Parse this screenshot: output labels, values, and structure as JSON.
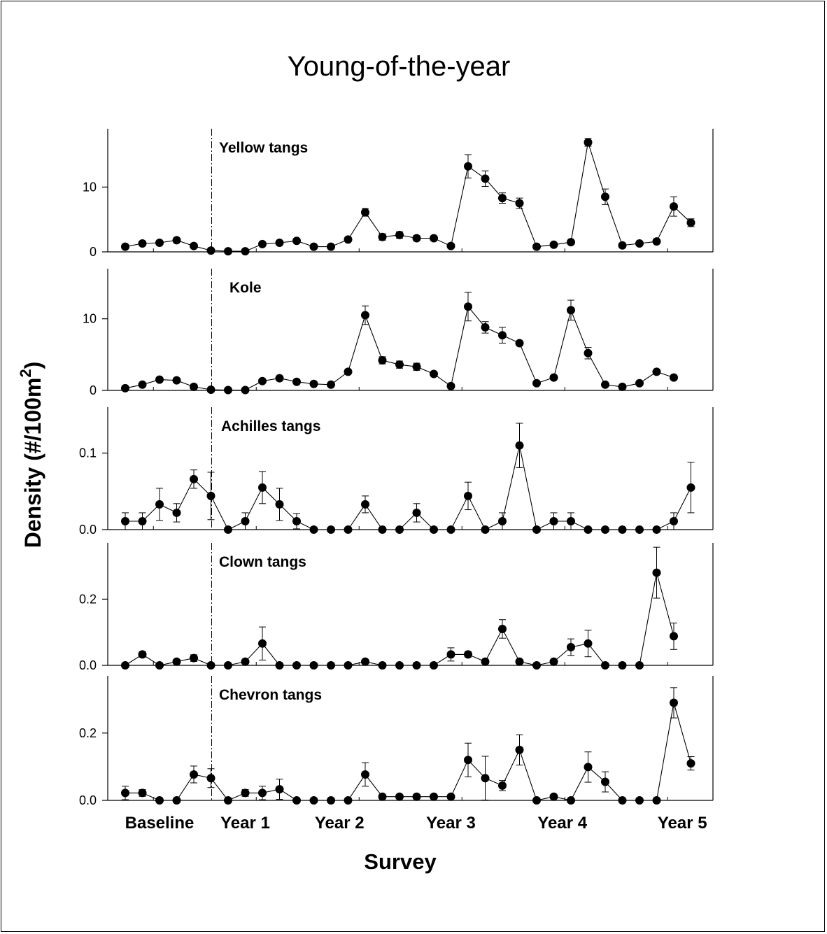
{
  "chart_data": {
    "type": "line",
    "title": "Young-of-the-year",
    "xlabel": "Survey",
    "ylabel": "Density (#/100m²)",
    "ylabel_main": "Density (#/100m",
    "ylabel_sup": "2",
    "ylabel_close": ")",
    "x_range": [
      1,
      35
    ],
    "intervention_x": 6,
    "grid": false,
    "x_tick_labels": [
      {
        "label": "Baseline",
        "x": 3
      },
      {
        "label": "Year 1",
        "x": 8
      },
      {
        "label": "Year 2",
        "x": 13.5
      },
      {
        "label": "Year 3",
        "x": 20
      },
      {
        "label": "Year 4",
        "x": 26.5
      },
      {
        "label": "Year 5",
        "x": 33.5
      }
    ],
    "panels": [
      {
        "name": "Yellow  tangs",
        "ylim": [
          0,
          19
        ],
        "yticks": [
          {
            "v": 0,
            "label": "0"
          },
          {
            "v": 10,
            "label": "10"
          }
        ],
        "values": [
          0.8,
          1.3,
          1.4,
          1.8,
          0.9,
          0.2,
          0.1,
          0.1,
          1.2,
          1.4,
          1.7,
          0.8,
          0.8,
          1.9,
          6.1,
          2.3,
          2.6,
          2.1,
          2.1,
          0.9,
          13.2,
          11.3,
          8.3,
          7.5,
          0.8,
          1.1,
          1.5,
          16.9,
          8.5,
          1.0,
          1.3,
          1.6,
          7.0,
          4.5
        ],
        "errors": [
          0,
          0,
          0,
          0,
          0,
          0,
          0,
          0,
          0,
          0,
          0,
          0,
          0,
          0,
          0.6,
          0.5,
          0.5,
          0.4,
          0,
          0,
          1.8,
          1.2,
          0.8,
          0.8,
          0,
          0,
          0,
          0.6,
          1.2,
          0,
          0,
          0,
          1.5,
          0.6
        ]
      },
      {
        "name": "Kole",
        "ylim": [
          0,
          17
        ],
        "yticks": [
          {
            "v": 0,
            "label": "0"
          },
          {
            "v": 10,
            "label": "10"
          }
        ],
        "values": [
          0.3,
          0.8,
          1.5,
          1.4,
          0.5,
          0.1,
          0.05,
          0.05,
          1.3,
          1.7,
          1.2,
          0.9,
          0.8,
          2.6,
          10.5,
          4.2,
          3.6,
          3.3,
          2.3,
          0.6,
          11.7,
          8.8,
          7.7,
          6.6,
          1.0,
          1.8,
          11.2,
          5.2,
          0.8,
          0.5,
          1.0,
          2.6,
          1.8
        ],
        "errors": [
          0,
          0,
          0,
          0,
          0,
          0,
          0,
          0,
          0,
          0,
          0,
          0,
          0,
          0,
          1.3,
          0.5,
          0.5,
          0.5,
          0,
          0,
          2.0,
          0.8,
          1.1,
          0,
          0,
          0,
          1.4,
          0.8,
          0,
          0,
          0,
          0,
          0
        ]
      },
      {
        "name": "Achilles tangs",
        "ylim": [
          0,
          0.16
        ],
        "yticks": [
          {
            "v": 0,
            "label": "0.0"
          },
          {
            "v": 0.1,
            "label": "0.1"
          }
        ],
        "values": [
          0.011,
          0.011,
          0.033,
          0.022,
          0.066,
          0.044,
          0,
          0.011,
          0.055,
          0.033,
          0.011,
          0,
          0,
          0,
          0.033,
          0,
          0,
          0.022,
          0,
          0,
          0.044,
          0,
          0.011,
          0.11,
          0,
          0.011,
          0.011,
          0,
          0,
          0,
          0,
          0,
          0.011,
          0.055
        ],
        "errors": [
          0.011,
          0.011,
          0.021,
          0.012,
          0.012,
          0.031,
          0,
          0.011,
          0.021,
          0.021,
          0.01,
          0,
          0,
          0,
          0.011,
          0,
          0,
          0.012,
          0,
          0,
          0.018,
          0,
          0.011,
          0.029,
          0,
          0.011,
          0.011,
          0,
          0,
          0,
          0,
          0,
          0.011,
          0.033
        ]
      },
      {
        "name": "Clown tangs",
        "ylim": [
          0,
          0.37
        ],
        "yticks": [
          {
            "v": 0,
            "label": "0.0"
          },
          {
            "v": 0.2,
            "label": "0.2"
          }
        ],
        "values": [
          0,
          0.033,
          0,
          0.011,
          0.022,
          0,
          0,
          0.011,
          0.066,
          0,
          0,
          0,
          0,
          0,
          0.011,
          0,
          0,
          0,
          0,
          0.033,
          0.033,
          0.011,
          0.11,
          0.011,
          0,
          0.011,
          0.055,
          0.066,
          0,
          0,
          0,
          0.28,
          0.088
        ],
        "errors": [
          0,
          0.008,
          0,
          0.005,
          0.01,
          0,
          0,
          0.005,
          0.05,
          0,
          0,
          0,
          0,
          0,
          0.005,
          0,
          0,
          0,
          0,
          0.02,
          0.008,
          0.005,
          0.028,
          0.005,
          0,
          0.005,
          0.025,
          0.04,
          0,
          0,
          0,
          0.077,
          0.04
        ]
      },
      {
        "name": "Chevron tangs",
        "ylim": [
          0,
          0.37
        ],
        "yticks": [
          {
            "v": 0,
            "label": "0.0"
          },
          {
            "v": 0.2,
            "label": "0.2"
          }
        ],
        "values": [
          0.022,
          0.022,
          0,
          0,
          0.077,
          0.066,
          0,
          0.022,
          0.022,
          0.033,
          0,
          0,
          0,
          0,
          0.077,
          0.011,
          0.011,
          0.011,
          0.011,
          0.011,
          0.12,
          0.066,
          0.044,
          0.15,
          0,
          0.011,
          0,
          0.099,
          0.055,
          0,
          0,
          0,
          0.29,
          0.11
        ],
        "errors": [
          0.02,
          0.01,
          0,
          0,
          0.025,
          0.028,
          0,
          0.01,
          0.02,
          0.03,
          0,
          0,
          0,
          0,
          0.035,
          0,
          0,
          0,
          0,
          0,
          0.05,
          0.065,
          0.015,
          0.045,
          0,
          0.005,
          0,
          0.045,
          0.03,
          0,
          0,
          0,
          0.045,
          0.02
        ]
      }
    ]
  }
}
